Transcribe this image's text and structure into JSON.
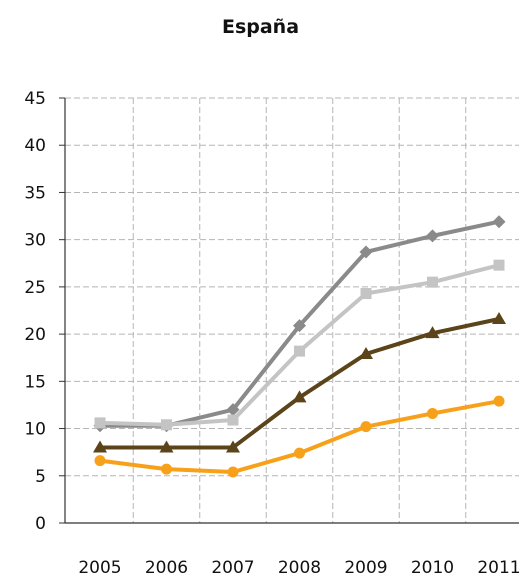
{
  "chart_data": {
    "type": "line",
    "title": "España",
    "categories": [
      "2005",
      "2006",
      "2007",
      "2008",
      "2009",
      "2010",
      "2011"
    ],
    "ylim": [
      0,
      45
    ],
    "yticks": [
      0,
      5,
      10,
      15,
      20,
      25,
      30,
      35,
      40,
      45
    ],
    "grid": "dashed vertical and horizontal",
    "legend": "none",
    "series": [
      {
        "color": "#8a8a8a",
        "marker": "diamond",
        "values": [
          10.3,
          10.3,
          12.0,
          20.9,
          28.7,
          30.4,
          31.9
        ]
      },
      {
        "color": "#c4c4c4",
        "marker": "square",
        "values": [
          10.6,
          10.4,
          10.9,
          18.2,
          24.3,
          25.5,
          27.3
        ]
      },
      {
        "color": "#5b4419",
        "marker": "triangle",
        "values": [
          8.0,
          8.0,
          8.0,
          13.3,
          17.9,
          20.1,
          21.6
        ]
      },
      {
        "color": "#f7a11a",
        "marker": "circle",
        "values": [
          6.6,
          5.7,
          5.4,
          7.4,
          10.2,
          11.6,
          12.9
        ]
      }
    ]
  }
}
